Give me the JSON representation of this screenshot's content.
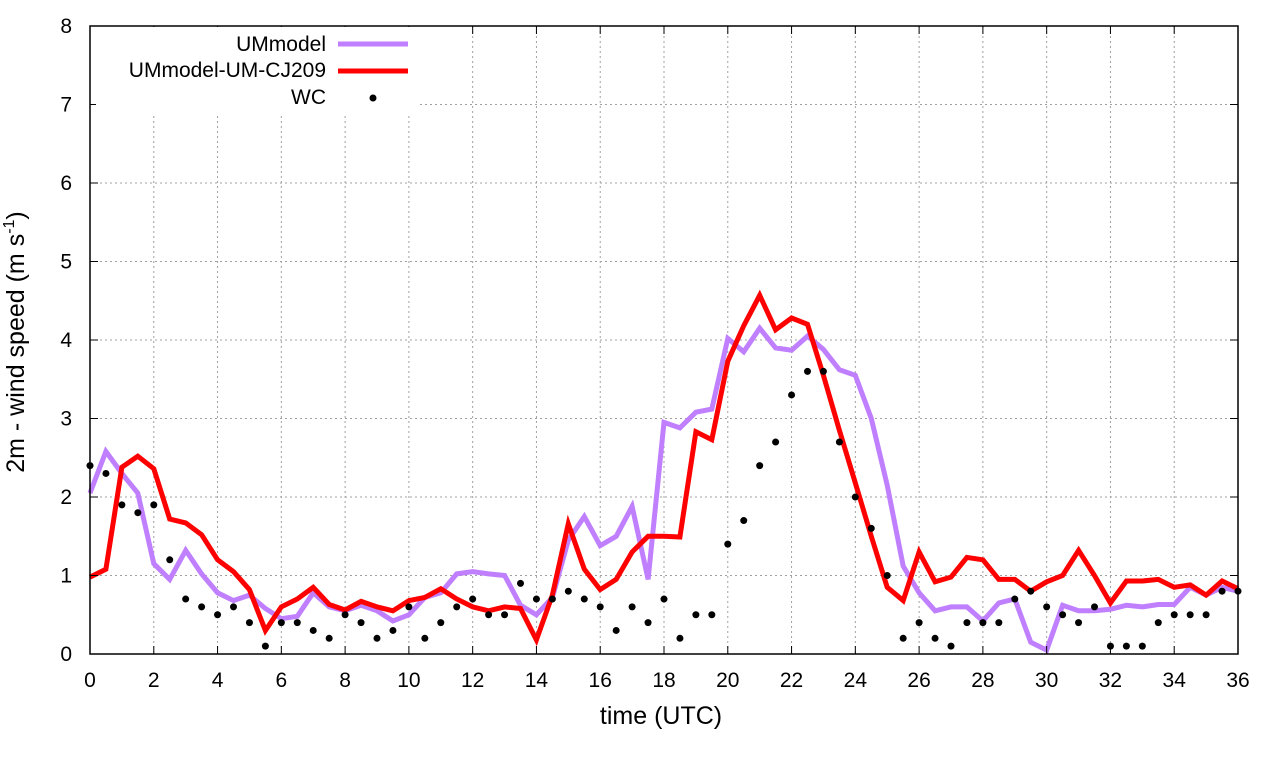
{
  "chart_data": {
    "type": "line",
    "title": "",
    "xlabel": "time (UTC)",
    "ylabel_main": "2m - wind speed  (m s",
    "ylabel_sup": "-1",
    "ylabel_end": ")",
    "xlim": [
      0,
      36
    ],
    "ylim": [
      0,
      8
    ],
    "xticks": [
      "0",
      "2",
      "4",
      "6",
      "8",
      "10",
      "12",
      "14",
      "16",
      "18",
      "20",
      "22",
      "24",
      "26",
      "28",
      "30",
      "32",
      "34",
      "36"
    ],
    "yticks": [
      "0",
      "1",
      "2",
      "3",
      "4",
      "5",
      "6",
      "7",
      "8"
    ],
    "grid": true,
    "legend_position": "top-left",
    "series": [
      {
        "name": "UMmodel",
        "style": "line",
        "color": "#bf7fff",
        "x": [
          0,
          0.5,
          1,
          1.5,
          2,
          2.5,
          3,
          3.5,
          4,
          4.5,
          5,
          5.5,
          6,
          6.5,
          7,
          7.5,
          8,
          8.5,
          9,
          9.5,
          10,
          10.5,
          11,
          11.5,
          12,
          12.5,
          13,
          13.5,
          14,
          14.5,
          15,
          15.5,
          16,
          16.5,
          17,
          17.5,
          18,
          18.5,
          19,
          19.5,
          20,
          20.5,
          21,
          21.5,
          22,
          22.5,
          23,
          23.5,
          24,
          24.5,
          25,
          25.5,
          26,
          26.5,
          27,
          27.5,
          28,
          28.5,
          29,
          29.5,
          30,
          30.5,
          31,
          31.5,
          32,
          32.5,
          33,
          33.5,
          34,
          34.5,
          35,
          35.5,
          36
        ],
        "y": [
          2.05,
          2.58,
          2.3,
          2.05,
          1.15,
          0.95,
          1.32,
          1.02,
          0.78,
          0.68,
          0.75,
          0.58,
          0.45,
          0.48,
          0.78,
          0.6,
          0.55,
          0.62,
          0.55,
          0.42,
          0.5,
          0.72,
          0.78,
          1.02,
          1.05,
          1.02,
          1.0,
          0.62,
          0.5,
          0.72,
          1.45,
          1.75,
          1.38,
          1.5,
          1.88,
          0.95,
          2.95,
          2.88,
          3.08,
          3.12,
          4.02,
          3.85,
          4.15,
          3.9,
          3.87,
          4.05,
          3.88,
          3.62,
          3.55,
          3.0,
          2.15,
          1.12,
          0.78,
          0.55,
          0.6,
          0.6,
          0.42,
          0.65,
          0.7,
          0.15,
          0.05,
          0.62,
          0.55,
          0.55,
          0.57,
          0.62,
          0.6,
          0.63,
          0.63,
          0.85,
          0.75,
          0.85,
          0.8
        ]
      },
      {
        "name": "UMmodel-UM-CJ209",
        "style": "line",
        "color": "#ff0000",
        "x": [
          0,
          0.5,
          1,
          1.5,
          2,
          2.5,
          3,
          3.5,
          4,
          4.5,
          5,
          5.5,
          6,
          6.5,
          7,
          7.5,
          8,
          8.5,
          9,
          9.5,
          10,
          10.5,
          11,
          11.5,
          12,
          12.5,
          13,
          13.5,
          14,
          14.5,
          15,
          15.5,
          16,
          16.5,
          17,
          17.5,
          18,
          18.5,
          19,
          19.5,
          20,
          20.5,
          21,
          21.5,
          22,
          22.5,
          23,
          23.5,
          24,
          24.5,
          25,
          25.5,
          26,
          26.5,
          27,
          27.5,
          28,
          28.5,
          29,
          29.5,
          30,
          30.5,
          31,
          31.5,
          32,
          32.5,
          33,
          33.5,
          34,
          34.5,
          35,
          35.5,
          36
        ],
        "y": [
          0.98,
          1.08,
          2.38,
          2.52,
          2.36,
          1.72,
          1.67,
          1.52,
          1.2,
          1.05,
          0.82,
          0.3,
          0.6,
          0.7,
          0.85,
          0.63,
          0.56,
          0.67,
          0.6,
          0.55,
          0.68,
          0.72,
          0.83,
          0.7,
          0.6,
          0.55,
          0.6,
          0.58,
          0.18,
          0.75,
          1.66,
          1.08,
          0.82,
          0.95,
          1.3,
          1.5,
          1.5,
          1.49,
          2.83,
          2.73,
          3.73,
          4.18,
          4.57,
          4.13,
          4.28,
          4.2,
          3.55,
          2.85,
          2.18,
          1.5,
          0.85,
          0.68,
          1.3,
          0.92,
          0.98,
          1.23,
          1.2,
          0.95,
          0.95,
          0.8,
          0.92,
          1.0,
          1.32,
          1.0,
          0.65,
          0.93,
          0.93,
          0.95,
          0.85,
          0.88,
          0.75,
          0.93,
          0.83
        ]
      },
      {
        "name": "WC",
        "style": "points",
        "color": "#000000",
        "x": [
          0,
          0.5,
          1,
          1.5,
          2,
          2.5,
          3,
          3.5,
          4,
          4.5,
          5,
          5.5,
          6,
          6.5,
          7,
          7.5,
          8,
          8.5,
          9,
          9.5,
          10,
          10.5,
          11,
          11.5,
          12,
          12.5,
          13,
          13.5,
          14,
          14.5,
          15,
          15.5,
          16,
          16.5,
          17,
          17.5,
          18,
          18.5,
          19,
          19.5,
          20,
          20.5,
          21,
          21.5,
          22,
          22.5,
          23,
          23.5,
          24,
          24.5,
          25,
          25.5,
          26,
          26.5,
          27,
          27.5,
          28,
          28.5,
          29,
          29.5,
          30,
          30.5,
          31,
          31.5,
          32,
          32.5,
          33,
          33.5,
          34,
          34.5,
          35,
          35.5,
          36
        ],
        "y": [
          2.4,
          2.3,
          1.9,
          1.8,
          1.9,
          1.2,
          0.7,
          0.6,
          0.5,
          0.6,
          0.4,
          0.1,
          0.4,
          0.4,
          0.3,
          0.2,
          0.5,
          0.4,
          0.2,
          0.3,
          0.6,
          0.2,
          0.4,
          0.6,
          0.7,
          0.5,
          0.5,
          0.9,
          0.7,
          0.7,
          0.8,
          0.7,
          0.6,
          0.3,
          0.6,
          0.4,
          0.7,
          0.2,
          0.5,
          0.5,
          1.4,
          1.7,
          2.4,
          2.7,
          3.3,
          3.6,
          3.6,
          2.7,
          2.0,
          1.6,
          1.0,
          0.2,
          0.4,
          0.2,
          0.1,
          0.4,
          0.4,
          0.4,
          0.7,
          0.8,
          0.6,
          0.5,
          0.4,
          0.6,
          0.1,
          0.1,
          0.1,
          0.4,
          0.5,
          0.5,
          0.5,
          0.8,
          0.8
        ]
      }
    ]
  }
}
